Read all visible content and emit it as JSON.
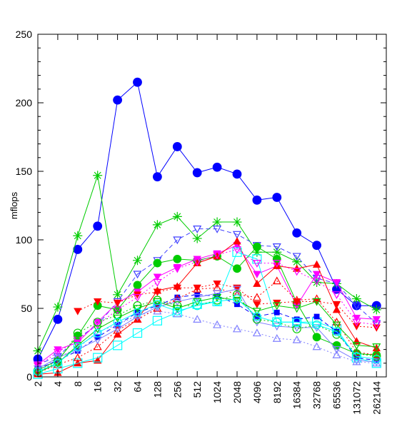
{
  "chart_data": {
    "type": "line",
    "title": "",
    "xlabel": "",
    "ylabel": "mflops",
    "categories": [
      "2",
      "4",
      "8",
      "16",
      "32",
      "64",
      "128",
      "256",
      "512",
      "1024",
      "2048",
      "4096",
      "8192",
      "16384",
      "32768",
      "65536",
      "131072",
      "262144"
    ],
    "ylim": [
      0,
      250
    ],
    "yticks": [
      0,
      50,
      100,
      150,
      200,
      250
    ],
    "grid": false,
    "legend": "none",
    "series": [
      {
        "color": "#0000ff",
        "marker": "circle",
        "dash": "solid",
        "values": [
          13,
          42,
          93,
          110,
          202,
          215,
          146,
          168,
          149,
          153,
          148,
          129,
          131,
          105,
          96,
          64,
          52,
          52
        ]
      },
      {
        "color": "#00cc00",
        "marker": "star",
        "dash": "solid",
        "values": [
          19,
          51,
          103,
          147,
          60,
          85,
          111,
          117,
          101,
          113,
          113,
          91,
          91,
          84,
          69,
          68,
          57,
          49
        ]
      },
      {
        "color": "#4040ff",
        "marker": "triangle-down-open",
        "dash": "dash",
        "values": [
          9,
          15,
          28,
          38,
          55,
          75,
          85,
          100,
          108,
          108,
          104,
          96,
          95,
          88,
          72,
          68,
          52,
          39
        ]
      },
      {
        "color": "#00cc00",
        "marker": "circle",
        "dash": "solid",
        "values": [
          5,
          12,
          30,
          52,
          49,
          67,
          83,
          86,
          85,
          88,
          79,
          95,
          86,
          54,
          29,
          23,
          17,
          16
        ]
      },
      {
        "color": "#ff00ff",
        "marker": "triangle-down",
        "dash": "solid",
        "values": [
          9,
          20,
          25,
          40,
          54,
          62,
          73,
          80,
          86,
          90,
          96,
          75,
          81,
          52,
          75,
          69,
          43,
          42
        ]
      },
      {
        "color": "#ff0000",
        "marker": "triangle-up",
        "dash": "solid",
        "values": [
          2,
          3,
          10,
          12,
          31,
          42,
          63,
          66,
          83,
          88,
          99,
          68,
          81,
          79,
          82,
          49,
          26,
          21
        ]
      },
      {
        "color": "#ff0000",
        "marker": "triangle-down",
        "dash": "dot",
        "values": [
          null,
          null,
          48,
          55,
          54,
          60,
          62,
          65,
          65,
          68,
          65,
          53,
          54,
          55,
          55,
          53,
          37,
          36
        ]
      },
      {
        "color": "#00ffff",
        "marker": "square-open",
        "dash": "solid",
        "values": [
          2,
          6,
          10,
          14,
          23,
          32,
          41,
          47,
          53,
          55,
          91,
          86,
          40,
          40,
          40,
          35,
          14,
          10
        ]
      },
      {
        "color": "#0000ff",
        "marker": "square",
        "dash": "dash",
        "values": [
          6,
          12,
          19,
          29,
          38,
          47,
          52,
          58,
          60,
          59,
          53,
          44,
          47,
          42,
          44,
          33,
          14,
          12
        ]
      },
      {
        "color": "#8080ff",
        "marker": "triangle-up-open",
        "dash": "dot",
        "values": [
          4,
          14,
          21,
          33,
          38,
          45,
          48,
          46,
          42,
          38,
          35,
          32,
          28,
          27,
          22,
          16,
          11,
          10
        ]
      },
      {
        "color": "#ff00ff",
        "marker": "triangle-down-open",
        "dash": "dot",
        "values": [
          8,
          18,
          27,
          38,
          49,
          58,
          69,
          79,
          84,
          89,
          93,
          83,
          83,
          77,
          70,
          60,
          40,
          38
        ]
      },
      {
        "color": "#ff0000",
        "marker": "triangle-up-open",
        "dash": "dot",
        "values": [
          3,
          9,
          14,
          22,
          34,
          42,
          50,
          57,
          64,
          65,
          60,
          58,
          70,
          56,
          57,
          40,
          18,
          16
        ]
      },
      {
        "color": "#8080ff",
        "marker": "triangle-down-open",
        "dash": "solid",
        "values": [
          6,
          14,
          20,
          27,
          35,
          44,
          51,
          55,
          58,
          61,
          64,
          40,
          37,
          36,
          36,
          20,
          12,
          11
        ]
      },
      {
        "color": "#00cc00",
        "marker": "triangle-down-open",
        "dash": "solid",
        "values": [
          3,
          10,
          23,
          35,
          43,
          50,
          55,
          50,
          55,
          58,
          56,
          48,
          52,
          50,
          55,
          38,
          23,
          22
        ]
      },
      {
        "color": "#00cc00",
        "marker": "circle-open",
        "dash": "dot",
        "values": [
          4,
          11,
          32,
          40,
          45,
          52,
          56,
          52,
          52,
          56,
          60,
          42,
          40,
          35,
          38,
          31,
          17,
          15
        ]
      },
      {
        "color": "#00ffff",
        "marker": "circle-open",
        "dash": "solid",
        "values": [
          4,
          10,
          22,
          32,
          40,
          47,
          53,
          48,
          52,
          55,
          57,
          44,
          40,
          40,
          38,
          33,
          15,
          13
        ]
      }
    ]
  }
}
